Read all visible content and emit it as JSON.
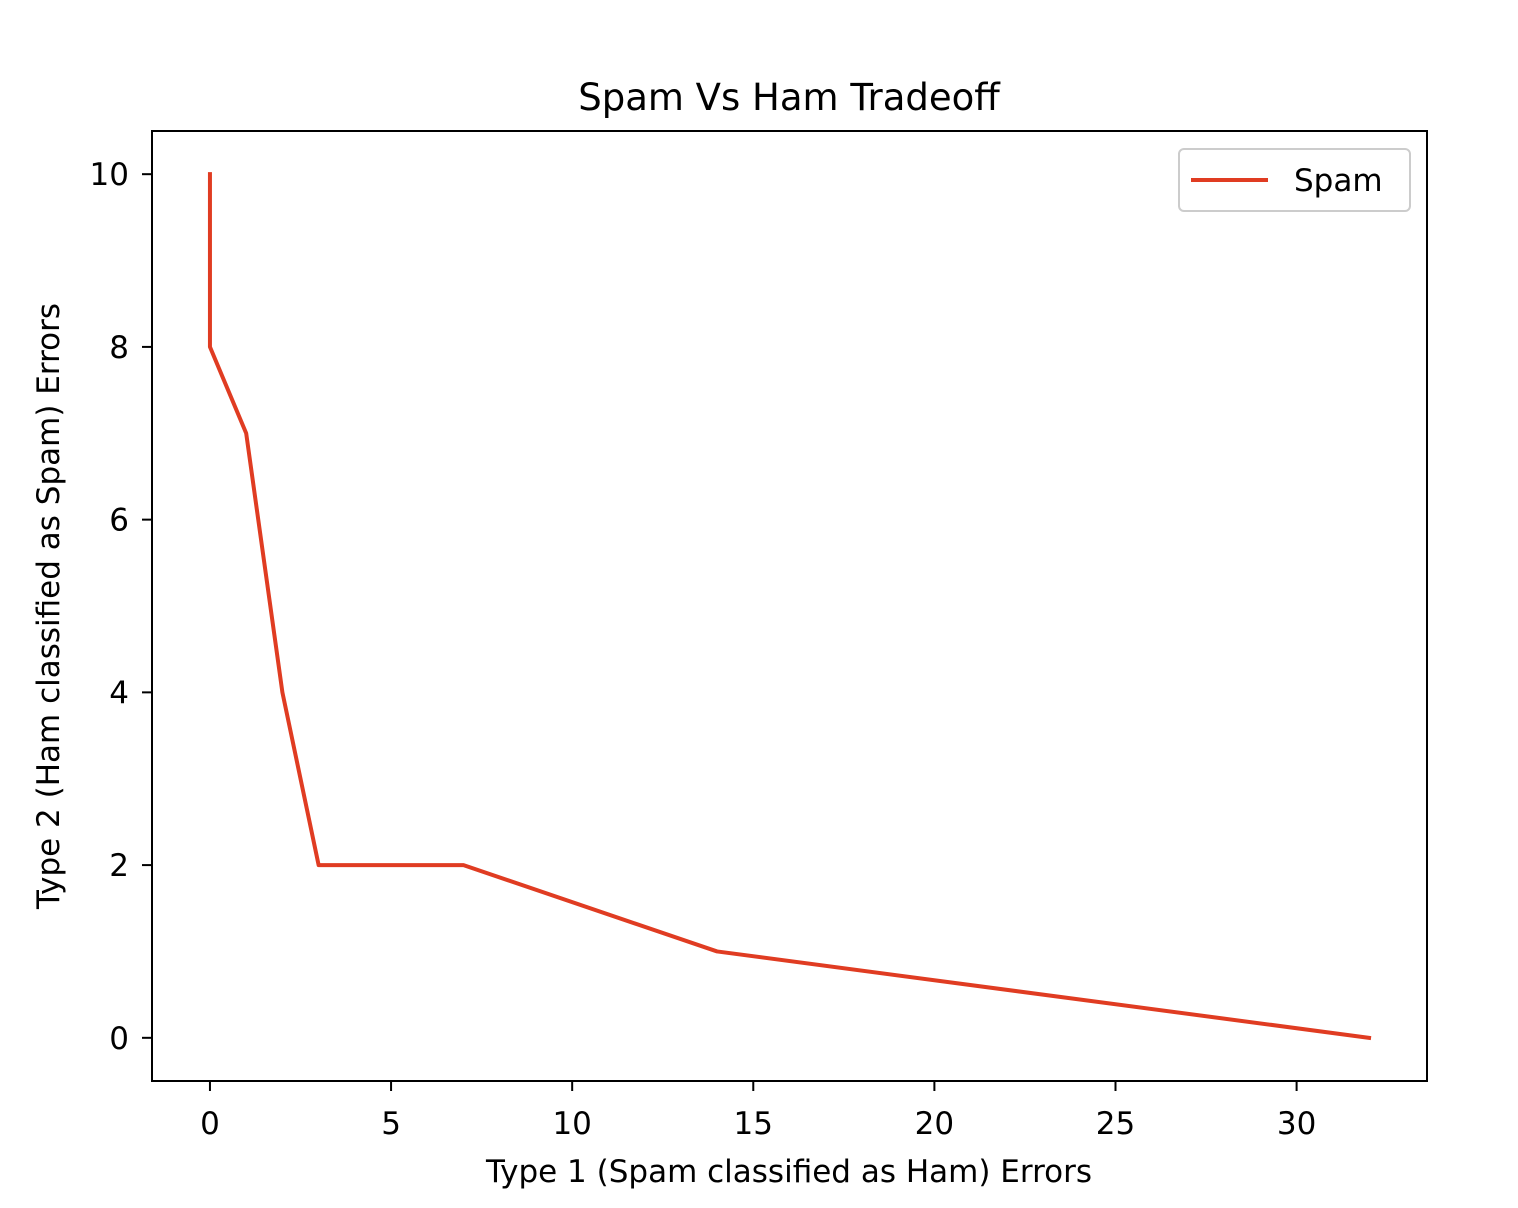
{
  "chart_data": {
    "type": "line",
    "title": "Spam Vs Ham Tradeoff",
    "xlabel": "Type 1 (Spam classified as Ham) Errors",
    "ylabel": "Type 2 (Ham classified as Spam) Errors",
    "xlim": [
      -1.6,
      33.6
    ],
    "ylim": [
      -0.5,
      10.5
    ],
    "xticks": [
      0,
      5,
      10,
      15,
      20,
      25,
      30
    ],
    "yticks": [
      0,
      2,
      4,
      6,
      8,
      10
    ],
    "xtick_labels": [
      "0",
      "5",
      "10",
      "15",
      "20",
      "25",
      "30"
    ],
    "ytick_labels": [
      "0",
      "2",
      "4",
      "6",
      "8",
      "10"
    ],
    "grid": false,
    "legend_position": "top-right",
    "series": [
      {
        "name": "Spam",
        "color": "#e03c22",
        "x": [
          0,
          0,
          1,
          2,
          3,
          7,
          14,
          32
        ],
        "y": [
          10,
          8,
          7,
          4,
          2,
          2,
          1,
          0
        ]
      }
    ]
  }
}
